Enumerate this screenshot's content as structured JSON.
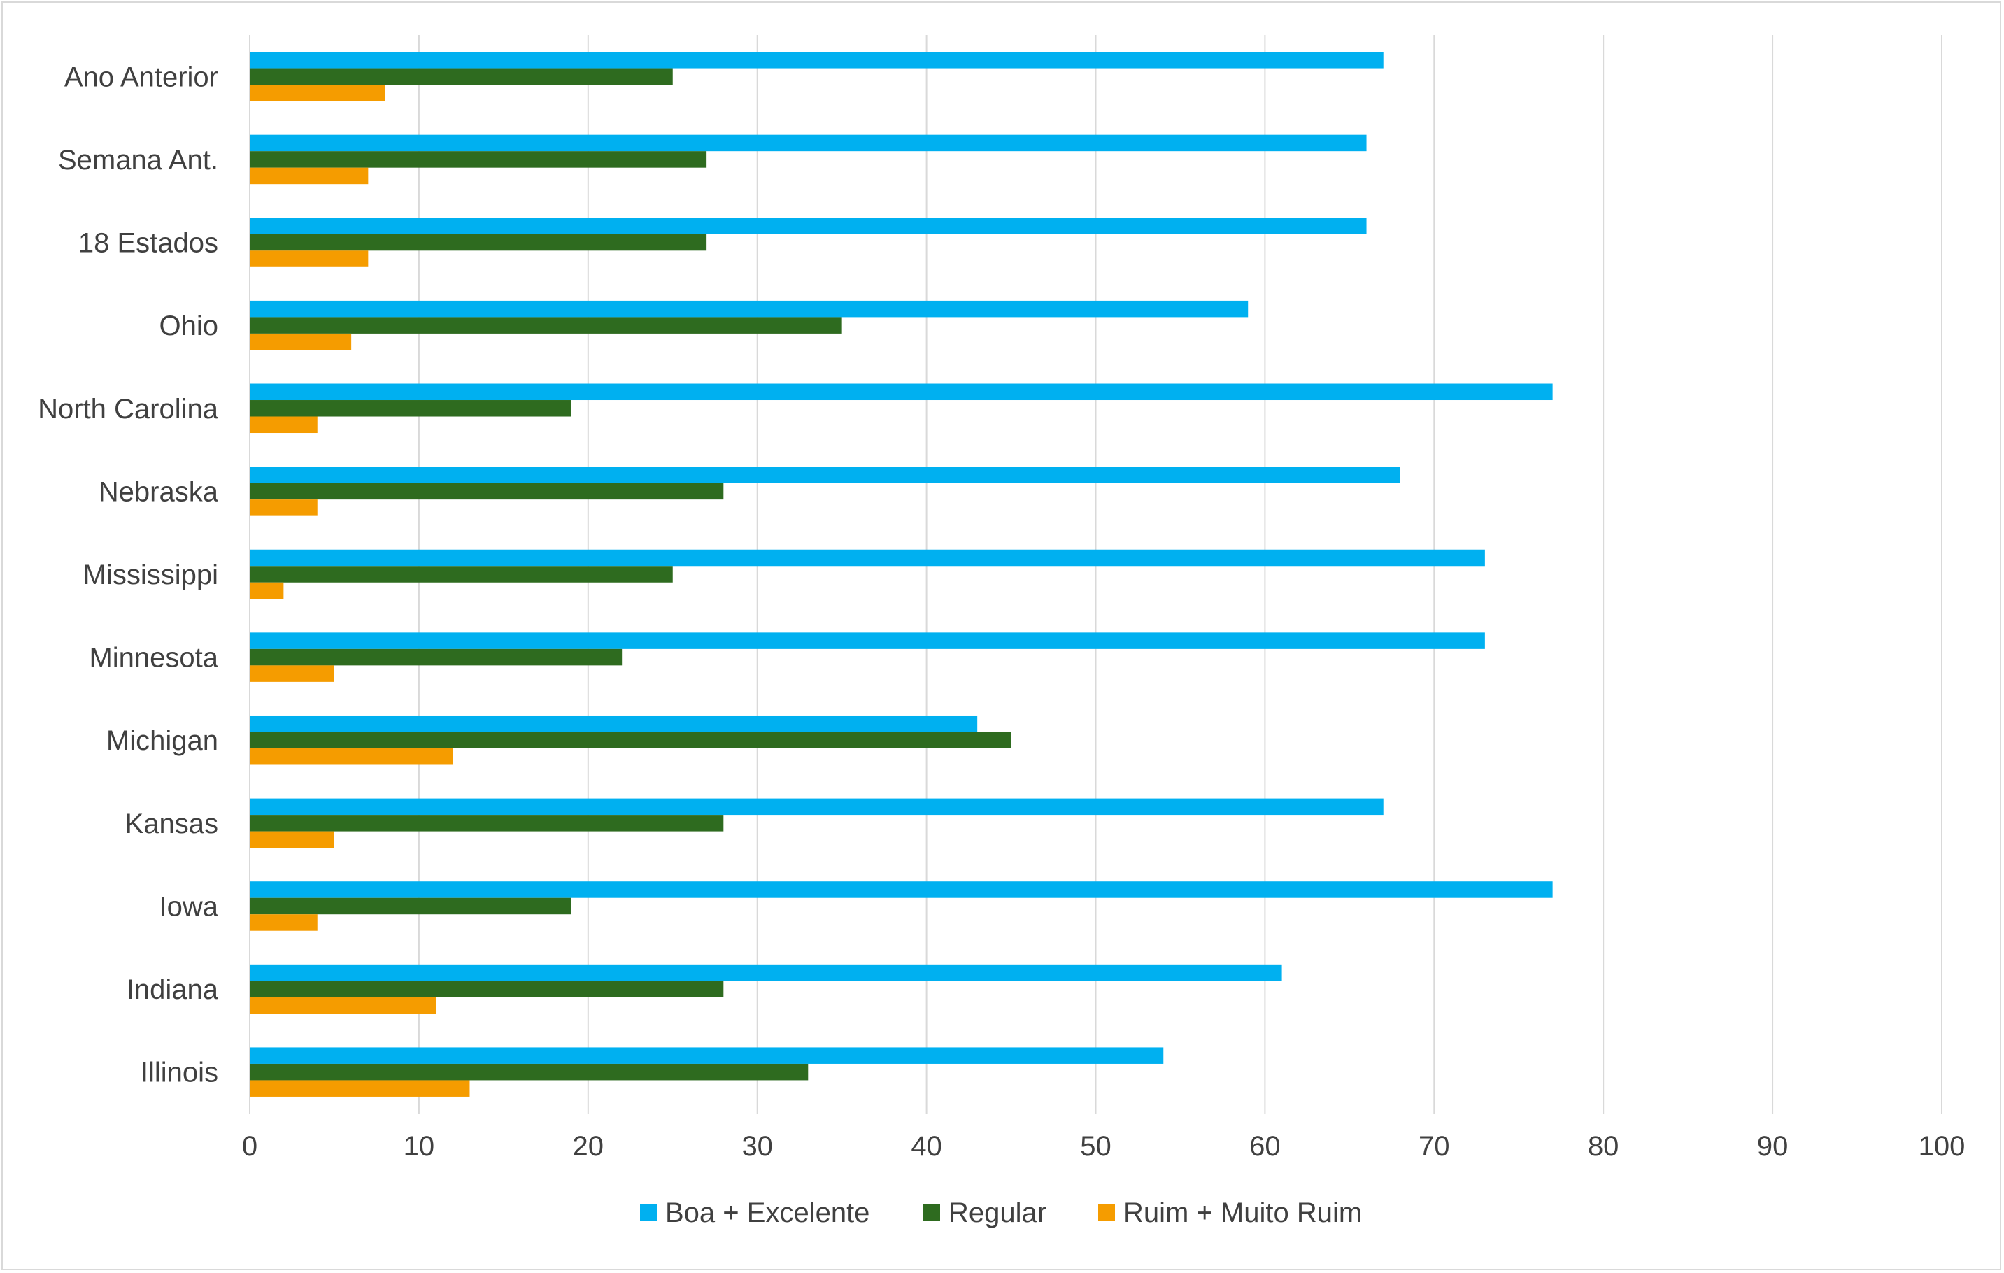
{
  "chart_data": {
    "type": "bar",
    "orientation": "horizontal",
    "title": "",
    "xlabel": "",
    "ylabel": "",
    "categories": [
      "Illinois",
      "Indiana",
      "Iowa",
      "Kansas",
      "Michigan",
      "Minnesota",
      "Mississippi",
      "Nebraska",
      "North Carolina",
      "Ohio",
      "18 Estados",
      "Semana Ant.",
      "Ano Anterior"
    ],
    "series": [
      {
        "name": "Boa + Excelente",
        "color": "#00b0f0",
        "values": [
          54,
          61,
          77,
          67,
          43,
          73,
          73,
          68,
          77,
          59,
          66,
          66,
          67
        ]
      },
      {
        "name": "Regular",
        "color": "#2e6b1f",
        "values": [
          33,
          28,
          19,
          28,
          45,
          22,
          25,
          28,
          19,
          35,
          27,
          27,
          25
        ]
      },
      {
        "name": "Ruim + Muito Ruim",
        "color": "#f59c00",
        "values": [
          13,
          11,
          4,
          5,
          12,
          5,
          2,
          4,
          4,
          6,
          7,
          7,
          8
        ]
      }
    ],
    "xlim": [
      0,
      100
    ],
    "xticks": [
      "0",
      "10",
      "20",
      "30",
      "40",
      "50",
      "60",
      "70",
      "80",
      "90",
      "100"
    ],
    "grid": "vertical",
    "legend_position": "bottom"
  }
}
